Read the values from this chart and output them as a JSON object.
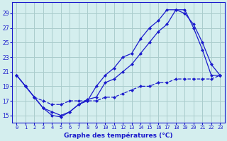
{
  "title": "Graphe des températures (°C)",
  "bg_color": "#d4eeee",
  "grid_color": "#aacccc",
  "line_color": "#1a1acc",
  "xlim": [
    -0.5,
    23.5
  ],
  "ylim": [
    14.0,
    30.5
  ],
  "xticks": [
    0,
    1,
    2,
    3,
    4,
    5,
    6,
    7,
    8,
    9,
    10,
    11,
    12,
    13,
    14,
    15,
    16,
    17,
    18,
    19,
    20,
    21,
    22,
    23
  ],
  "yticks": [
    15,
    17,
    19,
    21,
    23,
    25,
    27,
    29
  ],
  "series1_x": [
    0,
    1,
    2,
    3,
    4,
    5,
    6,
    7,
    8,
    9,
    10,
    11,
    12,
    13,
    14,
    15,
    16,
    17,
    18,
    19,
    20,
    21,
    22,
    23
  ],
  "series1_y": [
    20.5,
    19.0,
    17.5,
    16.0,
    15.5,
    15.0,
    15.5,
    16.5,
    17.0,
    19.0,
    20.5,
    21.5,
    23.0,
    23.5,
    25.5,
    27.0,
    28.0,
    29.5,
    29.5,
    29.0,
    27.5,
    25.0,
    22.0,
    20.5
  ],
  "series2_x": [
    0,
    1,
    2,
    3,
    4,
    5,
    6,
    7,
    8,
    9,
    10,
    11,
    12,
    13,
    14,
    15,
    16,
    17,
    18,
    19,
    20,
    21,
    22,
    23
  ],
  "series2_y": [
    20.5,
    19.0,
    17.5,
    16.0,
    15.0,
    14.8,
    15.5,
    16.5,
    17.2,
    17.5,
    19.5,
    20.0,
    21.0,
    22.0,
    23.5,
    25.0,
    26.5,
    27.5,
    29.5,
    29.5,
    27.0,
    24.0,
    20.5,
    20.5
  ],
  "series3_x": [
    0,
    1,
    2,
    3,
    4,
    5,
    6,
    7,
    8,
    9,
    10,
    11,
    12,
    13,
    14,
    15,
    16,
    17,
    18,
    19,
    20,
    21,
    22,
    23
  ],
  "series3_y": [
    20.5,
    19.0,
    17.5,
    17.0,
    16.5,
    16.5,
    17.0,
    17.0,
    17.0,
    17.0,
    17.5,
    17.5,
    18.0,
    18.5,
    19.0,
    19.0,
    19.5,
    19.5,
    20.0,
    20.0,
    20.0,
    20.0,
    20.0,
    20.5
  ]
}
